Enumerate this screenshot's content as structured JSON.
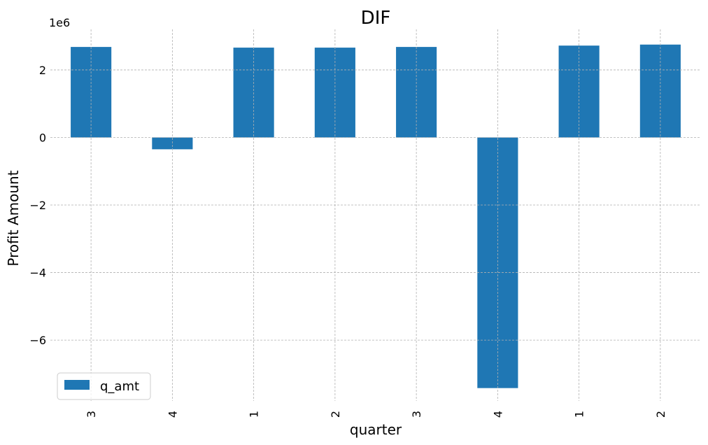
{
  "chart_data": {
    "type": "bar",
    "title": "DIF",
    "xlabel": "quarter",
    "ylabel": "Profit Amount",
    "y_offset_label": "1e6",
    "categories": [
      "3",
      "4",
      "1",
      "2",
      "3",
      "4",
      "1",
      "2"
    ],
    "series": [
      {
        "name": "q_amt",
        "color": "#1f77b4",
        "values": [
          2.68,
          -0.35,
          2.66,
          2.66,
          2.68,
          -7.42,
          2.72,
          2.75
        ]
      }
    ],
    "ylim": [
      -7.8,
      3.2
    ],
    "yticks": [
      2,
      0,
      -2,
      -4,
      -6
    ],
    "ytick_labels": [
      "2",
      "0",
      "−2",
      "−4",
      "−6"
    ],
    "grid": true,
    "legend_position": "lower-left"
  }
}
